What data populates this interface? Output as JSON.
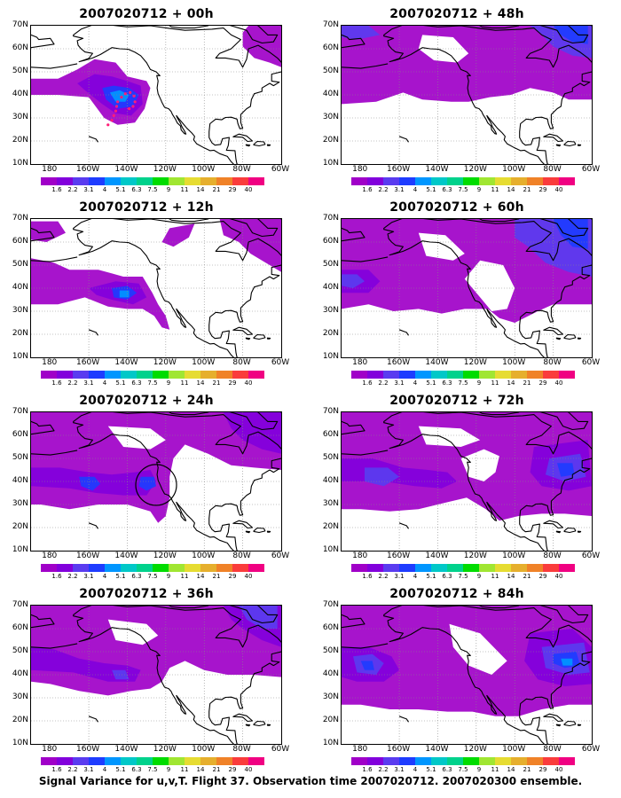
{
  "caption": "Signal Variance for u,v,T. Flight 37. Observation time 2007020712. 2007020300 ensemble.",
  "y_tick_labels": [
    "70N",
    "60N",
    "50N",
    "40N",
    "30N",
    "20N",
    "10N"
  ],
  "x_tick_labels": [
    "180",
    "160W",
    "140W",
    "120W",
    "100W",
    "80W",
    "60W"
  ],
  "colorbar": {
    "labels": [
      "1.6",
      "2.2",
      "3.1",
      "4",
      "5.1",
      "6.3",
      "7.5",
      "9",
      "11",
      "14",
      "21",
      "29",
      "40"
    ],
    "colors": [
      "#a000c8",
      "#8200dc",
      "#5a3cf0",
      "#1e3cff",
      "#0096ff",
      "#00c8c8",
      "#00d28c",
      "#00dc00",
      "#a0e632",
      "#e6dc32",
      "#e6af2d",
      "#f08228",
      "#fa3c3c",
      "#f00082"
    ]
  },
  "colors": {
    "land_outline": "#000000",
    "grid": "#888888",
    "flight_track": "#ff1e78",
    "circle": "#000000"
  },
  "panels": [
    {
      "title": "2007020712 + 00h",
      "lead": "00h",
      "marker": "flight-track"
    },
    {
      "title": "2007020712 + 48h",
      "lead": "48h",
      "marker": ""
    },
    {
      "title": "2007020712 + 12h",
      "lead": "12h",
      "marker": ""
    },
    {
      "title": "2007020712 + 60h",
      "lead": "60h",
      "marker": ""
    },
    {
      "title": "2007020712 + 24h",
      "lead": "24h",
      "marker": "circle"
    },
    {
      "title": "2007020712 + 72h",
      "lead": "72h",
      "marker": ""
    },
    {
      "title": "2007020712 + 36h",
      "lead": "36h",
      "marker": ""
    },
    {
      "title": "2007020712 + 84h",
      "lead": "84h",
      "marker": ""
    }
  ]
}
